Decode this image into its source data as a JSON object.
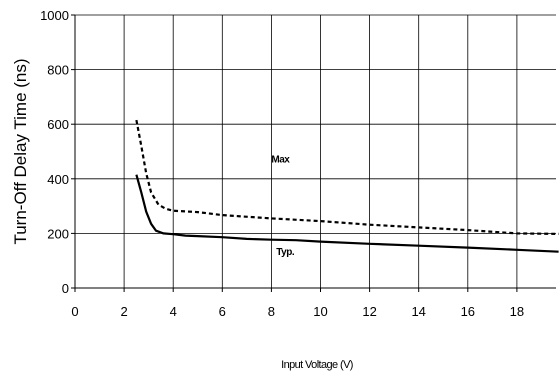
{
  "chart_data": {
    "type": "line",
    "ylabel": "Turn-Off Delay Time (ns)",
    "xlabel": "Input Voltage (V)",
    "xlim": [
      0,
      19.7
    ],
    "ylim": [
      0,
      1000
    ],
    "x_ticks": [
      "0",
      "2",
      "4",
      "6",
      "8",
      "10",
      "12",
      "14",
      "16",
      "18"
    ],
    "y_ticks": [
      "0",
      "200",
      "400",
      "600",
      "800",
      "1000"
    ],
    "grid": true,
    "series": [
      {
        "name": "Max",
        "style": "dashed",
        "color": "#000000",
        "x": [
          2.5,
          2.7,
          2.9,
          3.1,
          3.4,
          3.7,
          4.0,
          5.0,
          6.0,
          8.0,
          10.0,
          12.0,
          14.0,
          16.0,
          18.0,
          19.7
        ],
        "y": [
          615,
          520,
          420,
          350,
          305,
          290,
          283,
          278,
          267,
          255,
          245,
          232,
          222,
          212,
          200,
          198
        ]
      },
      {
        "name": "Typ.",
        "style": "solid",
        "color": "#000000",
        "x": [
          2.5,
          2.7,
          2.9,
          3.1,
          3.3,
          3.6,
          4.0,
          4.5,
          5.0,
          6.0,
          7.0,
          8.0,
          9.0,
          10.0,
          12.0,
          14.0,
          16.0,
          18.0,
          19.7
        ],
        "y": [
          415,
          350,
          280,
          235,
          210,
          200,
          197,
          192,
          190,
          186,
          180,
          177,
          175,
          170,
          162,
          155,
          148,
          140,
          133
        ]
      }
    ],
    "annotations": [
      {
        "text": "Max",
        "x": 8.0,
        "y": 460
      },
      {
        "text": "Typ.",
        "x": 8.2,
        "y": 120
      }
    ]
  }
}
